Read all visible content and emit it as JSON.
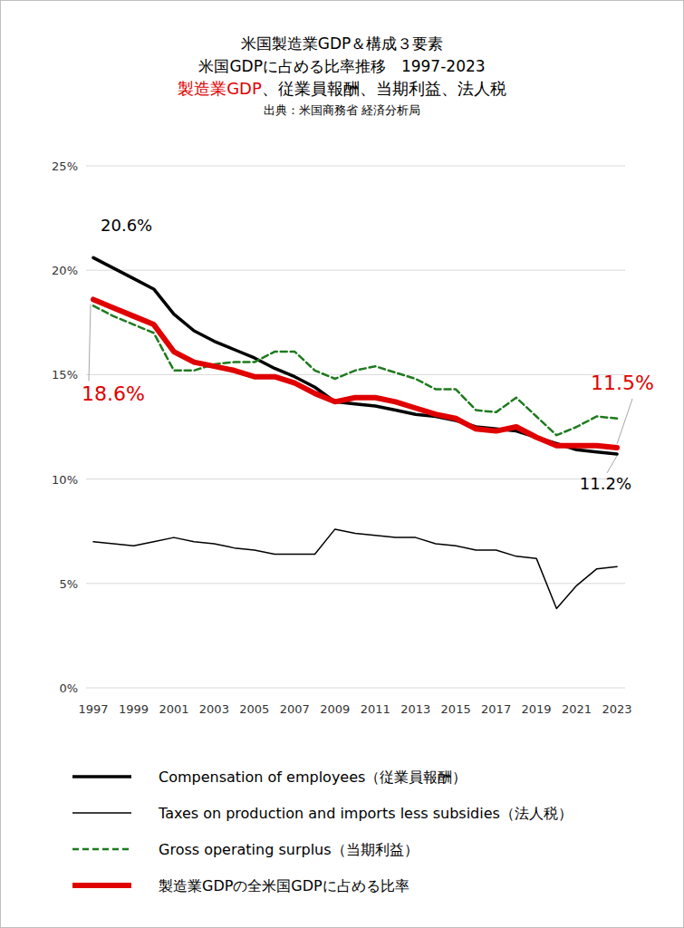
{
  "chart_data": {
    "type": "line",
    "title": "米国製造業GDP＆構成３要素",
    "subtitle": "米国GDPに占める比率推移　1997-2023",
    "subtitle2": [
      {
        "text": "製造業GDP",
        "color": "#e00000"
      },
      {
        "text": "、従業員報酬、当期利益、法人税",
        "color": "#000000"
      }
    ],
    "source": "出典：米国商務省 経済分析局",
    "x": [
      1997,
      1998,
      1999,
      2000,
      2001,
      2002,
      2003,
      2004,
      2005,
      2006,
      2007,
      2008,
      2009,
      2010,
      2011,
      2012,
      2013,
      2014,
      2015,
      2016,
      2017,
      2018,
      2019,
      2020,
      2021,
      2022,
      2023
    ],
    "xlim": [
      1997,
      2023
    ],
    "xticks": [
      1997,
      1999,
      2001,
      2003,
      2005,
      2007,
      2009,
      2011,
      2013,
      2015,
      2017,
      2019,
      2021,
      2023
    ],
    "ylim": [
      0,
      25
    ],
    "yticks": [
      {
        "value": 0,
        "label": "0%"
      },
      {
        "value": 5,
        "label": "5%"
      },
      {
        "value": 10,
        "label": "10%"
      },
      {
        "value": 15,
        "label": "15%"
      },
      {
        "value": 20,
        "label": "20%"
      },
      {
        "value": 25,
        "label": "25%"
      }
    ],
    "grid": true,
    "legend": "bottom",
    "series": [
      {
        "name": "Compensation of employees（従業員報酬）",
        "color": "#000000",
        "line_style": "solid",
        "values": [
          20.6,
          20.1,
          19.6,
          19.1,
          17.9,
          17.1,
          16.6,
          16.2,
          15.8,
          15.3,
          14.9,
          14.4,
          13.7,
          13.6,
          13.5,
          13.3,
          13.1,
          13.0,
          12.8,
          12.5,
          12.4,
          12.3,
          12.0,
          11.7,
          11.4,
          11.3,
          11.2
        ]
      },
      {
        "name": "Taxes on production and imports less subsidies（法人税）",
        "color": "#000000",
        "line_style": "solid",
        "values": [
          7.0,
          6.9,
          6.8,
          7.0,
          7.2,
          7.0,
          6.9,
          6.7,
          6.6,
          6.4,
          6.4,
          6.4,
          7.6,
          7.4,
          7.3,
          7.2,
          7.2,
          6.9,
          6.8,
          6.6,
          6.6,
          6.3,
          6.2,
          3.8,
          4.9,
          5.7,
          5.8
        ]
      },
      {
        "name": "Gross operating surplus（当期利益）",
        "color": "#1e7a1e",
        "line_style": "dashed",
        "values": [
          18.3,
          17.8,
          17.4,
          17.0,
          15.2,
          15.2,
          15.5,
          15.6,
          15.6,
          16.1,
          16.1,
          15.2,
          14.8,
          15.2,
          15.4,
          15.1,
          14.8,
          14.3,
          14.3,
          13.3,
          13.2,
          13.9,
          13.0,
          12.1,
          12.5,
          13.0,
          12.9
        ]
      },
      {
        "name": "製造業GDPの全米国GDPに占める比率",
        "color": "#e00000",
        "line_style": "solid",
        "values": [
          18.6,
          18.2,
          17.8,
          17.4,
          16.1,
          15.6,
          15.4,
          15.2,
          14.9,
          14.9,
          14.6,
          14.1,
          13.7,
          13.9,
          13.9,
          13.7,
          13.4,
          13.1,
          12.9,
          12.4,
          12.3,
          12.5,
          12.0,
          11.6,
          11.6,
          11.6,
          11.5
        ]
      }
    ],
    "annotations": [
      {
        "text": "20.6%",
        "x": 1997,
        "y": 20.6
      },
      {
        "text": "18.6%",
        "x": 1997,
        "y": 18.6
      },
      {
        "text": "11.5%",
        "x": 2023,
        "y": 11.5
      },
      {
        "text": "11.2%",
        "x": 2023,
        "y": 11.2
      }
    ]
  }
}
